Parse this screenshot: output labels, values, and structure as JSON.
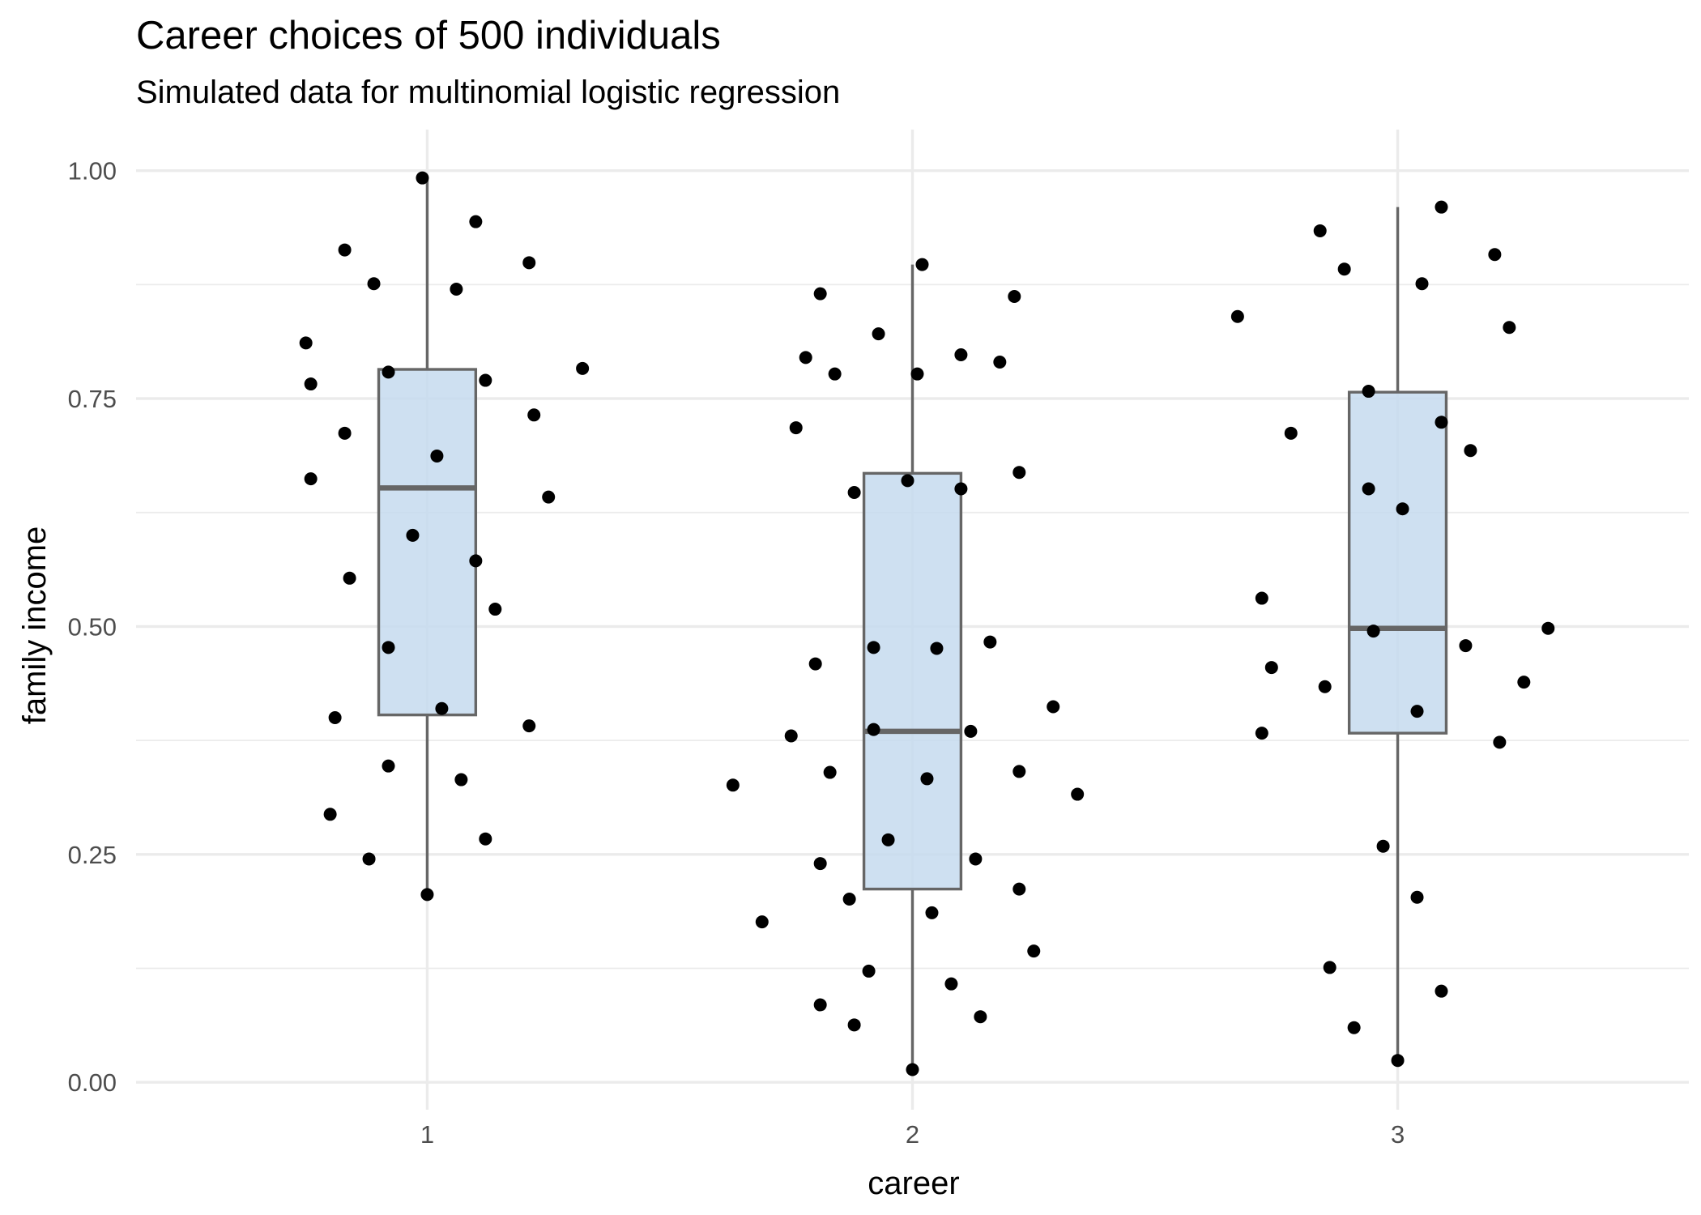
{
  "chart_data": {
    "type": "boxplot",
    "title": "Career choices of 500 individuals",
    "subtitle": "Simulated data for multinomial logistic regression",
    "xlabel": "career",
    "ylabel": "family income",
    "categories": [
      "1",
      "2",
      "3"
    ],
    "ylim": [
      -0.03,
      1.045
    ],
    "y_ticks": [
      "0.00",
      "0.25",
      "0.50",
      "0.75",
      "1.00"
    ],
    "grid": true,
    "box_fill": "#c6dbef",
    "box_stroke": "#666666",
    "point_color": "#000000",
    "boxes": [
      {
        "category": "1",
        "whisker_low": 0.206,
        "q1": 0.403,
        "median": 0.652,
        "q3": 0.782,
        "whisker_high": 0.992
      },
      {
        "category": "2",
        "whisker_low": 0.014,
        "q1": 0.212,
        "median": 0.385,
        "q3": 0.668,
        "whisker_high": 0.897
      },
      {
        "category": "3",
        "whisker_low": 0.024,
        "q1": 0.383,
        "median": 0.498,
        "q3": 0.757,
        "whisker_high": 0.96
      }
    ],
    "points": [
      {
        "x": 0.99,
        "y": 0.992
      },
      {
        "x": 1.1,
        "y": 0.944
      },
      {
        "x": 0.83,
        "y": 0.913
      },
      {
        "x": 1.21,
        "y": 0.899
      },
      {
        "x": 0.89,
        "y": 0.876
      },
      {
        "x": 1.06,
        "y": 0.87
      },
      {
        "x": 0.75,
        "y": 0.811
      },
      {
        "x": 1.32,
        "y": 0.783
      },
      {
        "x": 0.92,
        "y": 0.779
      },
      {
        "x": 1.12,
        "y": 0.77
      },
      {
        "x": 0.76,
        "y": 0.766
      },
      {
        "x": 1.22,
        "y": 0.732
      },
      {
        "x": 0.83,
        "y": 0.712
      },
      {
        "x": 1.02,
        "y": 0.687
      },
      {
        "x": 0.76,
        "y": 0.662
      },
      {
        "x": 1.25,
        "y": 0.642
      },
      {
        "x": 0.97,
        "y": 0.6
      },
      {
        "x": 1.1,
        "y": 0.572
      },
      {
        "x": 0.84,
        "y": 0.553
      },
      {
        "x": 1.14,
        "y": 0.519
      },
      {
        "x": 0.92,
        "y": 0.477
      },
      {
        "x": 1.03,
        "y": 0.41
      },
      {
        "x": 0.81,
        "y": 0.4
      },
      {
        "x": 1.21,
        "y": 0.391
      },
      {
        "x": 0.92,
        "y": 0.347
      },
      {
        "x": 1.07,
        "y": 0.332
      },
      {
        "x": 0.8,
        "y": 0.294
      },
      {
        "x": 1.12,
        "y": 0.267
      },
      {
        "x": 0.88,
        "y": 0.245
      },
      {
        "x": 1.0,
        "y": 0.206
      },
      {
        "x": 2.02,
        "y": 0.897
      },
      {
        "x": 1.81,
        "y": 0.865
      },
      {
        "x": 2.21,
        "y": 0.862
      },
      {
        "x": 1.93,
        "y": 0.821
      },
      {
        "x": 2.1,
        "y": 0.798
      },
      {
        "x": 1.78,
        "y": 0.795
      },
      {
        "x": 2.18,
        "y": 0.79
      },
      {
        "x": 1.84,
        "y": 0.777
      },
      {
        "x": 2.01,
        "y": 0.777
      },
      {
        "x": 1.76,
        "y": 0.718
      },
      {
        "x": 2.22,
        "y": 0.669
      },
      {
        "x": 1.99,
        "y": 0.66
      },
      {
        "x": 2.1,
        "y": 0.651
      },
      {
        "x": 1.88,
        "y": 0.647
      },
      {
        "x": 2.16,
        "y": 0.483
      },
      {
        "x": 1.92,
        "y": 0.477
      },
      {
        "x": 2.05,
        "y": 0.476
      },
      {
        "x": 1.8,
        "y": 0.459
      },
      {
        "x": 2.29,
        "y": 0.412
      },
      {
        "x": 1.92,
        "y": 0.387
      },
      {
        "x": 2.12,
        "y": 0.385
      },
      {
        "x": 1.75,
        "y": 0.38
      },
      {
        "x": 2.22,
        "y": 0.341
      },
      {
        "x": 1.83,
        "y": 0.34
      },
      {
        "x": 2.03,
        "y": 0.333
      },
      {
        "x": 1.63,
        "y": 0.326
      },
      {
        "x": 2.34,
        "y": 0.316
      },
      {
        "x": 1.95,
        "y": 0.266
      },
      {
        "x": 2.13,
        "y": 0.245
      },
      {
        "x": 1.81,
        "y": 0.24
      },
      {
        "x": 2.22,
        "y": 0.212
      },
      {
        "x": 1.87,
        "y": 0.201
      },
      {
        "x": 2.04,
        "y": 0.186
      },
      {
        "x": 1.69,
        "y": 0.176
      },
      {
        "x": 2.25,
        "y": 0.144
      },
      {
        "x": 1.91,
        "y": 0.122
      },
      {
        "x": 2.08,
        "y": 0.108
      },
      {
        "x": 1.81,
        "y": 0.085
      },
      {
        "x": 2.14,
        "y": 0.072
      },
      {
        "x": 1.88,
        "y": 0.063
      },
      {
        "x": 2.0,
        "y": 0.014
      },
      {
        "x": 3.09,
        "y": 0.96
      },
      {
        "x": 2.84,
        "y": 0.934
      },
      {
        "x": 3.2,
        "y": 0.908
      },
      {
        "x": 2.89,
        "y": 0.892
      },
      {
        "x": 3.05,
        "y": 0.876
      },
      {
        "x": 2.67,
        "y": 0.84
      },
      {
        "x": 3.23,
        "y": 0.828
      },
      {
        "x": 2.94,
        "y": 0.758
      },
      {
        "x": 3.09,
        "y": 0.724
      },
      {
        "x": 2.78,
        "y": 0.712
      },
      {
        "x": 3.15,
        "y": 0.693
      },
      {
        "x": 2.94,
        "y": 0.651
      },
      {
        "x": 3.01,
        "y": 0.629
      },
      {
        "x": 2.72,
        "y": 0.531
      },
      {
        "x": 3.31,
        "y": 0.498
      },
      {
        "x": 2.95,
        "y": 0.495
      },
      {
        "x": 3.14,
        "y": 0.479
      },
      {
        "x": 2.74,
        "y": 0.455
      },
      {
        "x": 3.26,
        "y": 0.439
      },
      {
        "x": 2.85,
        "y": 0.434
      },
      {
        "x": 3.04,
        "y": 0.407
      },
      {
        "x": 2.72,
        "y": 0.383
      },
      {
        "x": 3.21,
        "y": 0.373
      },
      {
        "x": 2.97,
        "y": 0.259
      },
      {
        "x": 3.04,
        "y": 0.203
      },
      {
        "x": 2.86,
        "y": 0.126
      },
      {
        "x": 3.09,
        "y": 0.1
      },
      {
        "x": 2.91,
        "y": 0.06
      },
      {
        "x": 3.0,
        "y": 0.024
      }
    ]
  }
}
